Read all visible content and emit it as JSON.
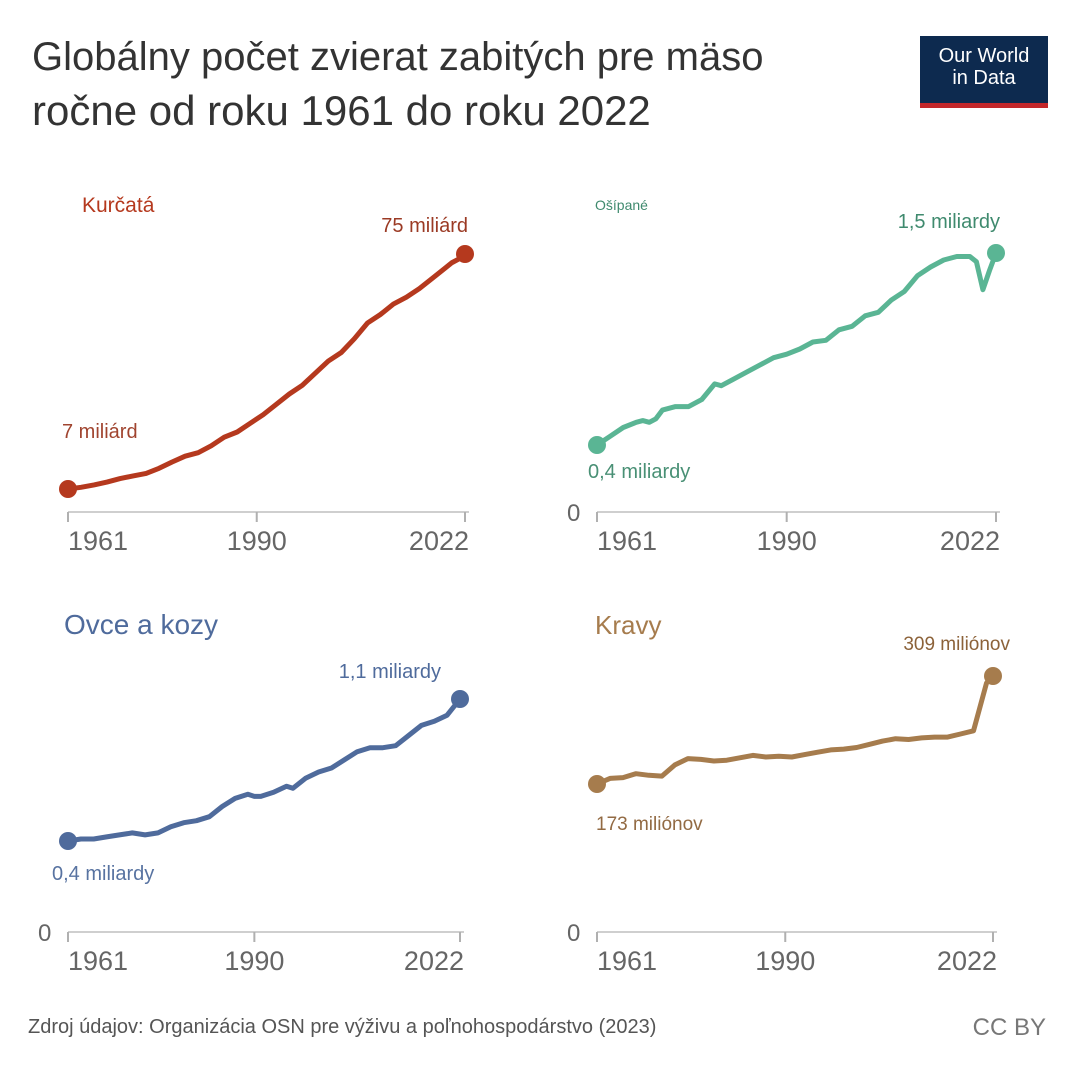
{
  "header": {
    "title_line1": "Globálny počet zvierat zabitých pre mäso",
    "title_line2": "ročne od roku 1961 do roku 2022"
  },
  "logo": {
    "line1": "Our World",
    "line2": "in Data",
    "background": "#0d2a4f",
    "accent": "#c3272b"
  },
  "footer": {
    "source": "Zdroj údajov: Organizácia OSN pre výživu a poľnohospodárstvo (2023)",
    "license": "CC BY"
  },
  "chart_data": [
    {
      "type": "line",
      "title": "Kurčatá",
      "color": "#b5391e",
      "x_ticks": [
        "1961",
        "1990",
        "2022"
      ],
      "x": [
        1961,
        1963,
        1965,
        1967,
        1969,
        1971,
        1973,
        1975,
        1977,
        1979,
        1981,
        1983,
        1985,
        1987,
        1989,
        1991,
        1993,
        1995,
        1997,
        1999,
        2001,
        2003,
        2005,
        2007,
        2009,
        2011,
        2013,
        2015,
        2017,
        2019,
        2020,
        2021,
        2022
      ],
      "values": [
        7,
        7.5,
        8.2,
        9.0,
        10.0,
        10.8,
        11.5,
        13.0,
        14.8,
        16.5,
        17.5,
        19.5,
        22.0,
        23.5,
        26.0,
        28.5,
        31.5,
        34.5,
        37.0,
        40.5,
        44.0,
        46.5,
        50.5,
        55.0,
        57.5,
        60.5,
        62.5,
        65.0,
        68.0,
        71.0,
        72.5,
        73.5,
        75
      ],
      "start_label": "7 miliárd",
      "end_label": "75 miliárd",
      "ylim": [
        0,
        80
      ]
    },
    {
      "type": "line",
      "title": "Ošípané",
      "color": "#5ab594",
      "x_ticks": [
        "1961",
        "1990",
        "2022"
      ],
      "y_zero_label": "0",
      "x": [
        1961,
        1963,
        1965,
        1967,
        1968,
        1969,
        1970,
        1971,
        1973,
        1975,
        1977,
        1979,
        1980,
        1982,
        1984,
        1986,
        1988,
        1990,
        1992,
        1994,
        1996,
        1998,
        2000,
        2002,
        2004,
        2006,
        2008,
        2010,
        2012,
        2014,
        2016,
        2018,
        2019,
        2020,
        2021,
        2022
      ],
      "values": [
        0.4,
        0.45,
        0.5,
        0.53,
        0.54,
        0.53,
        0.55,
        0.6,
        0.62,
        0.62,
        0.66,
        0.75,
        0.74,
        0.78,
        0.82,
        0.86,
        0.9,
        0.92,
        0.95,
        0.99,
        1.0,
        1.06,
        1.08,
        1.14,
        1.16,
        1.23,
        1.28,
        1.37,
        1.42,
        1.46,
        1.48,
        1.48,
        1.45,
        1.29,
        1.4,
        1.5
      ],
      "start_label": "0,4 miliardy",
      "end_label": "1,5 miliardy",
      "ylim": [
        0,
        1.6
      ]
    },
    {
      "type": "line",
      "title": "Ovce a kozy",
      "color": "#4f6b9c",
      "x_ticks": [
        "1961",
        "1990",
        "2022"
      ],
      "y_zero_label": "0",
      "x": [
        1961,
        1963,
        1965,
        1967,
        1969,
        1971,
        1973,
        1975,
        1977,
        1979,
        1981,
        1983,
        1985,
        1987,
        1989,
        1990,
        1991,
        1993,
        1995,
        1996,
        1998,
        2000,
        2002,
        2004,
        2006,
        2008,
        2010,
        2012,
        2014,
        2016,
        2018,
        2020,
        2022
      ],
      "values": [
        0.4,
        0.41,
        0.41,
        0.42,
        0.43,
        0.44,
        0.43,
        0.44,
        0.47,
        0.49,
        0.5,
        0.52,
        0.57,
        0.61,
        0.63,
        0.62,
        0.62,
        0.64,
        0.67,
        0.66,
        0.71,
        0.74,
        0.76,
        0.8,
        0.84,
        0.86,
        0.86,
        0.87,
        0.92,
        0.97,
        0.99,
        1.02,
        1.1
      ],
      "start_label": "0,4 miliardy",
      "end_label": "1,1 miliardy",
      "ylim": [
        0,
        1.2
      ]
    },
    {
      "type": "line",
      "title": "Kravy",
      "color": "#a67c4d",
      "x_ticks": [
        "1961",
        "1990",
        "2022"
      ],
      "y_zero_label": "0",
      "x": [
        1961,
        1963,
        1965,
        1967,
        1969,
        1971,
        1973,
        1975,
        1977,
        1979,
        1981,
        1983,
        1985,
        1987,
        1989,
        1991,
        1993,
        1995,
        1997,
        1999,
        2001,
        2003,
        2005,
        2007,
        2009,
        2011,
        2013,
        2015,
        2017,
        2019,
        2021,
        2022
      ],
      "values": [
        173,
        180,
        181,
        186,
        184,
        183,
        197,
        205,
        204,
        202,
        203,
        206,
        209,
        207,
        208,
        207,
        210,
        213,
        216,
        217,
        219,
        223,
        227,
        230,
        229,
        231,
        232,
        232,
        236,
        240,
        300,
        309
      ],
      "start_label": "173 miliónov",
      "end_label": "309 miliónov",
      "ylim": [
        0,
        320
      ]
    }
  ]
}
